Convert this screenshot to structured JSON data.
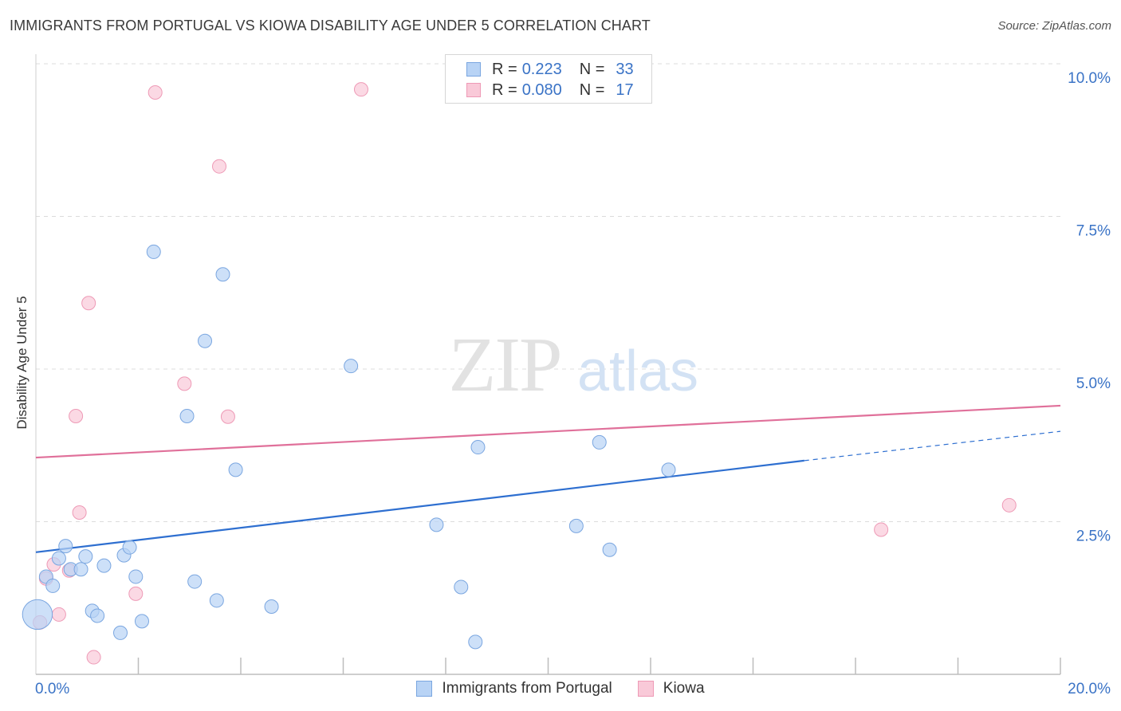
{
  "title": "IMMIGRANTS FROM PORTUGAL VS KIOWA DISABILITY AGE UNDER 5 CORRELATION CHART",
  "source": "Source: ZipAtlas.com",
  "watermark": {
    "zip": "ZIP",
    "atlas": "atlas"
  },
  "colors": {
    "blue_fill": "#b8d3f5",
    "blue_stroke": "#7aa6e0",
    "blue_line": "#2e6fd0",
    "pink_fill": "#f9c9d8",
    "pink_stroke": "#ee9ab6",
    "pink_line": "#e0709a",
    "tick_label": "#3a73c6",
    "grid": "#dcdcdc"
  },
  "legend": {
    "rows": [
      {
        "r_label": "R = ",
        "r_value": "0.223",
        "n_label": "N = ",
        "n_value": "33"
      },
      {
        "r_label": "R = ",
        "r_value": "0.080",
        "n_label": "N = ",
        "n_value": "17"
      }
    ]
  },
  "bottom_legend": [
    {
      "label": "Immigrants from Portugal"
    },
    {
      "label": "Kiowa"
    }
  ],
  "chart_data": {
    "type": "scatter",
    "title": "IMMIGRANTS FROM PORTUGAL VS KIOWA DISABILITY AGE UNDER 5 CORRELATION CHART",
    "xlabel": "",
    "ylabel": "Disability Age Under 5",
    "xlim": [
      0,
      20
    ],
    "ylim": [
      0,
      10
    ],
    "x_tick_labels": [
      {
        "value": 0,
        "label": "0.0%"
      },
      {
        "value": 20,
        "label": "20.0%"
      }
    ],
    "y_tick_labels": [
      {
        "value": 2.5,
        "label": "2.5%"
      },
      {
        "value": 5.0,
        "label": "5.0%"
      },
      {
        "value": 7.5,
        "label": "7.5%"
      },
      {
        "value": 10.0,
        "label": "10.0%"
      }
    ],
    "grid": true,
    "series": [
      {
        "name": "Immigrants from Portugal",
        "color": "blue",
        "r": 0.223,
        "n": 33,
        "points": [
          [
            0.03,
            0.98,
            2.2
          ],
          [
            0.2,
            1.6,
            1
          ],
          [
            0.33,
            1.45,
            1
          ],
          [
            0.45,
            1.9,
            1
          ],
          [
            0.58,
            2.1,
            1
          ],
          [
            0.68,
            1.72,
            1
          ],
          [
            0.88,
            1.72,
            1
          ],
          [
            0.97,
            1.93,
            1
          ],
          [
            1.1,
            1.04,
            1
          ],
          [
            1.2,
            0.96,
            1
          ],
          [
            1.33,
            1.78,
            1
          ],
          [
            1.65,
            0.68,
            1
          ],
          [
            1.72,
            1.95,
            1
          ],
          [
            1.83,
            2.08,
            1
          ],
          [
            1.95,
            1.6,
            1
          ],
          [
            2.07,
            0.87,
            1
          ],
          [
            2.3,
            6.92,
            1
          ],
          [
            2.95,
            4.23,
            1
          ],
          [
            3.1,
            1.52,
            1
          ],
          [
            3.3,
            5.46,
            1
          ],
          [
            3.53,
            1.21,
            1
          ],
          [
            3.65,
            6.55,
            1
          ],
          [
            3.9,
            3.35,
            1
          ],
          [
            4.6,
            1.11,
            1
          ],
          [
            6.15,
            5.05,
            1
          ],
          [
            7.82,
            2.45,
            1
          ],
          [
            8.3,
            1.43,
            1
          ],
          [
            8.58,
            0.53,
            1
          ],
          [
            8.63,
            3.72,
            1
          ],
          [
            10.55,
            2.43,
            1
          ],
          [
            11.0,
            3.8,
            1
          ],
          [
            11.2,
            2.04,
            1
          ],
          [
            12.35,
            3.35,
            1
          ]
        ],
        "trend": {
          "x_start": 0,
          "y_start": 2.0,
          "x_solid_end": 15.0,
          "y_solid_end": 3.5,
          "x_end": 20,
          "y_end": 3.98
        }
      },
      {
        "name": "Kiowa",
        "color": "pink",
        "r": 0.08,
        "n": 17,
        "points": [
          [
            0.08,
            0.85,
            1
          ],
          [
            0.2,
            1.57,
            1
          ],
          [
            0.35,
            1.8,
            1
          ],
          [
            0.45,
            0.98,
            1
          ],
          [
            0.65,
            1.7,
            1
          ],
          [
            0.78,
            4.23,
            1
          ],
          [
            0.85,
            2.65,
            1
          ],
          [
            1.03,
            6.08,
            1
          ],
          [
            1.13,
            0.28,
            1
          ],
          [
            1.95,
            1.32,
            1
          ],
          [
            2.33,
            9.53,
            1
          ],
          [
            2.9,
            4.76,
            1
          ],
          [
            3.58,
            8.32,
            1
          ],
          [
            3.75,
            4.22,
            1
          ],
          [
            6.35,
            9.58,
            1
          ],
          [
            16.5,
            2.37,
            1
          ],
          [
            19.0,
            2.77,
            1
          ]
        ],
        "trend": {
          "x_start": 0,
          "y_start": 3.55,
          "x_end": 20,
          "y_end": 4.4
        }
      }
    ]
  }
}
